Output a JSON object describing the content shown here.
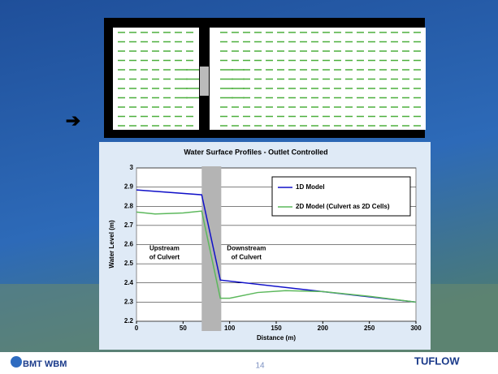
{
  "chart_data": {
    "type": "line",
    "title": "Water Surface Profiles - Outlet Controlled",
    "x_label": "Distance (m)",
    "y_label": "Water Level (m)",
    "xlim": [
      0,
      300
    ],
    "xticks": [
      0,
      50,
      100,
      150,
      200,
      250,
      300
    ],
    "ylim": [
      2.2,
      3
    ],
    "yticks": [
      2.2,
      2.3,
      2.4,
      2.5,
      2.6,
      2.7,
      2.8,
      2.9,
      3
    ],
    "band_x": [
      70,
      91
    ],
    "band_color": "#b4b4b4",
    "series": [
      {
        "name": "1D Model",
        "color": "#1010c8",
        "x": [
          0,
          70,
          90,
          300
        ],
        "values": [
          2.885,
          2.86,
          2.415,
          2.3
        ]
      },
      {
        "name": "2D Model (Culvert as 2D Cells)",
        "color": "#5cb85c",
        "x": [
          0,
          20,
          50,
          70,
          90,
          100,
          130,
          160,
          200,
          250,
          300
        ],
        "values": [
          2.77,
          2.76,
          2.765,
          2.775,
          2.32,
          2.32,
          2.35,
          2.36,
          2.355,
          2.33,
          2.3
        ]
      }
    ],
    "annotations": [
      {
        "lines": [
          "Upstream",
          "of Culvert"
        ],
        "x": 30,
        "y": 2.58
      },
      {
        "lines": [
          "Downstream",
          "of Culvert"
        ],
        "x": 118,
        "y": 2.58
      }
    ]
  },
  "footer": {
    "logo_left": "BMT WBM",
    "page_number": "14",
    "logo_right": "TUFLOW"
  },
  "pointer": "➔"
}
